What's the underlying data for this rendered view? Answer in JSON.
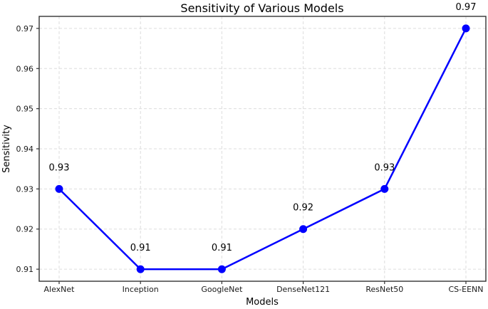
{
  "chart_data": {
    "type": "line",
    "title": "Sensitivity of Various Models",
    "xlabel": "Models",
    "ylabel": "Sensitivity",
    "categories": [
      "AlexNet",
      "Inception",
      "GoogleNet",
      "DenseNet121",
      "ResNet50",
      "CS-EENN"
    ],
    "series": [
      {
        "name": "Sensitivity",
        "values": [
          0.93,
          0.91,
          0.91,
          0.92,
          0.93,
          0.97
        ]
      }
    ],
    "point_labels": [
      "0.93",
      "0.91",
      "0.91",
      "0.92",
      "0.93",
      "0.97"
    ],
    "yticks": [
      0.91,
      0.92,
      0.93,
      0.94,
      0.95,
      0.96,
      0.97
    ],
    "ytick_labels": [
      "0.91",
      "0.92",
      "0.93",
      "0.94",
      "0.95",
      "0.96",
      "0.97"
    ],
    "ylim": [
      0.907,
      0.973
    ],
    "grid": true,
    "legend": "none",
    "line_color": "#0000ff",
    "marker": "circle",
    "marker_color": "#0000ff",
    "grid_color": "#dddddd",
    "spine_color": "#333333",
    "text_color": "#000000",
    "background": "#ffffff"
  }
}
